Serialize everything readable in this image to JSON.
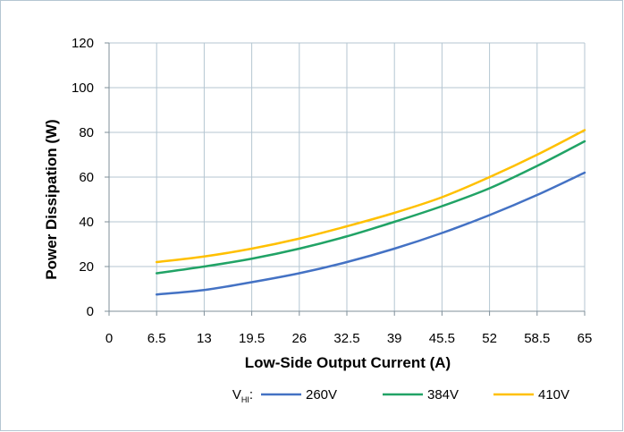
{
  "chart_data": {
    "type": "line",
    "xlabel": "Low-Side Output Current (A)",
    "ylabel": "Power Dissipation (W)",
    "xlim": [
      0,
      65
    ],
    "ylim": [
      0,
      120
    ],
    "x_ticks": [
      "0",
      "6.5",
      "13",
      "19.5",
      "26",
      "32.5",
      "39",
      "45.5",
      "52",
      "58.5",
      "65"
    ],
    "y_ticks": [
      "0",
      "20",
      "40",
      "60",
      "80",
      "100",
      "120"
    ],
    "grid": true,
    "legend": {
      "placement": "bottom",
      "prefix_main": "V",
      "prefix_sub": "HI",
      "prefix_suffix": ":"
    },
    "x": [
      6.5,
      13,
      19.5,
      26,
      32.5,
      39,
      45.5,
      52,
      58.5,
      65
    ],
    "series": [
      {
        "name": "260V",
        "color": "#4472c4",
        "values": [
          7.5,
          9.5,
          13,
          17,
          22,
          28,
          35,
          43,
          52,
          62
        ]
      },
      {
        "name": "384V",
        "color": "#21a366",
        "values": [
          17,
          20,
          23.5,
          28,
          33.5,
          40,
          47,
          55,
          65,
          76
        ]
      },
      {
        "name": "410V",
        "color": "#ffc000",
        "values": [
          22,
          24.5,
          28,
          32.5,
          38,
          44,
          51,
          60,
          70,
          81
        ]
      }
    ]
  }
}
